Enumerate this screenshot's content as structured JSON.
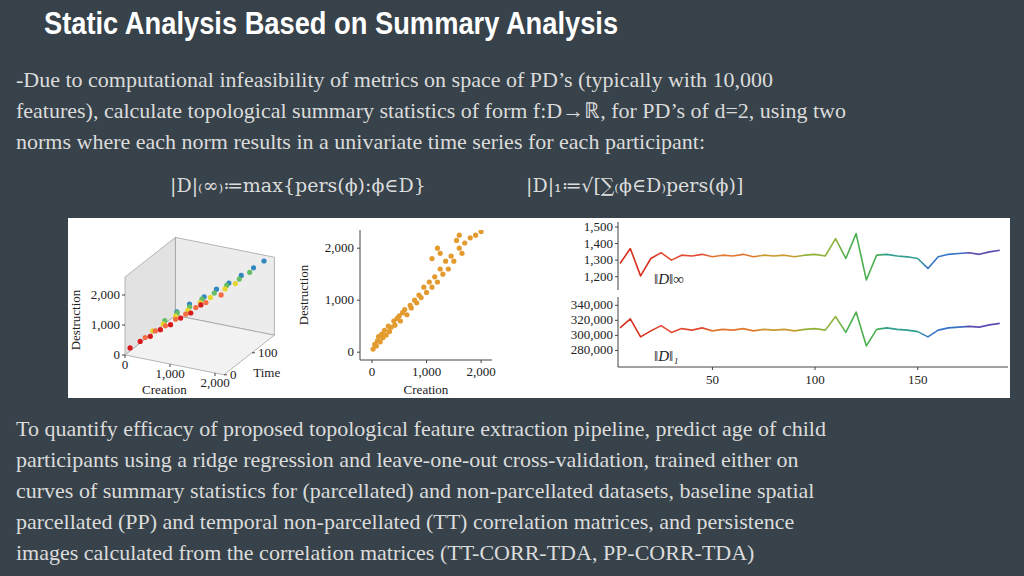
{
  "slide": {
    "title": "Static Analysis Based on Summary Analysis",
    "intro": [
      "-Due to computational infeasibility of metrics on space of PD’s (typically with 10,000",
      "features), calculate topological summary statistics of form f:D→ℝ, for PD’s of d=2, using two",
      "norms where each norm results in a univariate time series for each participant:"
    ],
    "formula_inf": "|D|₍∞₎≔max{pers(ϕ):ϕ∈D}",
    "formula_one": "|D|₁≔√[∑₍ϕ∈D₎pers(ϕ)]",
    "body": [
      "To quantify efficacy of proposed topological feature extraction pipeline, predict age of child",
      "participants using a ridge regression and leave-one-out cross-validation, trained either on",
      "curves of summary statistics for (parcellated) and non-parcellated datasets, baseline spatial",
      "parcellated (PP) and temporal non-parcellated (TT) correlation matrices, and persistence",
      "images calculated from the correlation matrices (TT-CORR-TDA, PP-CORR-TDA)"
    ]
  },
  "chart_data": [
    {
      "type": "scatter3d",
      "x_label": "Creation",
      "y_label": "Destruction",
      "z_label": "Time",
      "xlim": [
        0,
        2200
      ],
      "ylim": [
        0,
        2600
      ],
      "zlim": [
        0,
        180
      ],
      "xticks": [
        0,
        {
          "value": 1000,
          "label": "1,000"
        },
        {
          "value": 2000,
          "label": "2,000"
        }
      ],
      "yticks": [
        0,
        {
          "value": 1000,
          "label": "1,000"
        },
        {
          "value": 2000,
          "label": "2,000"
        }
      ],
      "zticks": [
        0,
        100
      ],
      "series": [
        {
          "color": "#d7191c",
          "x": [
            100,
            300,
            500,
            700,
            900,
            1100,
            1300,
            1500
          ],
          "values": [
            250,
            500,
            700,
            950,
            1150,
            1400,
            1600,
            1900
          ],
          "time": [
            2,
            6,
            10,
            14,
            18,
            22,
            26,
            30
          ]
        },
        {
          "color": "#f46d43",
          "x": [
            200,
            400,
            600,
            800,
            1000,
            1200,
            1400,
            1700
          ],
          "values": [
            350,
            600,
            800,
            1050,
            1250,
            1500,
            1700,
            2000
          ],
          "time": [
            40,
            44,
            48,
            52,
            56,
            60,
            64,
            70
          ]
        },
        {
          "color": "#e6d52c",
          "x": [
            150,
            350,
            600,
            850,
            1100,
            1300,
            1600,
            1800
          ],
          "values": [
            300,
            550,
            850,
            1100,
            1400,
            1600,
            1950,
            2150
          ],
          "time": [
            75,
            80,
            84,
            88,
            92,
            96,
            100,
            105
          ]
        },
        {
          "color": "#66bd63",
          "x": [
            200,
            450,
            700,
            950,
            1200,
            1450,
            1700,
            1900
          ],
          "values": [
            400,
            700,
            950,
            1250,
            1500,
            1800,
            2050,
            2300
          ],
          "time": [
            110,
            114,
            118,
            122,
            126,
            130,
            135,
            140
          ]
        },
        {
          "color": "#3288bd",
          "x": [
            250,
            500,
            800,
            1050,
            1300,
            1550,
            1800,
            2000
          ],
          "values": [
            450,
            750,
            1050,
            1350,
            1600,
            1900,
            2200,
            2450
          ],
          "time": [
            145,
            150,
            154,
            158,
            162,
            166,
            170,
            175
          ]
        }
      ]
    },
    {
      "type": "scatter",
      "x_label": "Creation",
      "y_label": "Destruction",
      "color": "#e39b2f",
      "xlim": [
        -220,
        2200
      ],
      "ylim": [
        -150,
        2350
      ],
      "xticks": [
        0,
        {
          "value": 1000,
          "label": "1,000"
        },
        {
          "value": 2000,
          "label": "2,000"
        }
      ],
      "yticks": [
        0,
        {
          "value": 1000,
          "label": "1,000"
        },
        {
          "value": 2000,
          "label": "2,000"
        }
      ],
      "x": [
        20,
        50,
        80,
        100,
        120,
        150,
        180,
        200,
        230,
        260,
        300,
        320,
        350,
        400,
        420,
        460,
        500,
        520,
        560,
        600,
        640,
        700,
        720,
        780,
        820,
        860,
        900,
        950,
        1000,
        1050,
        1100,
        1150,
        1200,
        1250,
        1300,
        1350,
        1400,
        1450,
        1500,
        1600,
        1650,
        1700,
        1800,
        1900,
        2000,
        1550,
        1250,
        1100,
        1200,
        1600
      ],
      "values": [
        60,
        150,
        120,
        220,
        300,
        200,
        350,
        280,
        420,
        330,
        500,
        400,
        480,
        600,
        520,
        650,
        700,
        600,
        760,
        820,
        720,
        900,
        850,
        1000,
        950,
        1100,
        1050,
        1250,
        1150,
        1350,
        1250,
        1450,
        1350,
        1600,
        1500,
        1750,
        1600,
        1850,
        1750,
        2000,
        1900,
        2100,
        2200,
        2250,
        2320,
        2150,
        1900,
        1800,
        2000,
        2250
      ]
    },
    {
      "type": "line",
      "annotation": "‖D‖∞",
      "tick_labels": "y",
      "xlim": [
        4,
        194
      ],
      "ylim": [
        1120,
        1530
      ],
      "yticks": [
        {
          "value": 1200,
          "label": "1,200"
        },
        {
          "value": 1300,
          "label": "1,300"
        },
        {
          "value": 1400,
          "label": "1,400"
        },
        {
          "value": 1500,
          "label": "1,500"
        }
      ],
      "x": [
        5,
        10,
        15,
        20,
        25,
        30,
        35,
        40,
        45,
        50,
        55,
        60,
        65,
        70,
        75,
        80,
        85,
        90,
        95,
        100,
        105,
        110,
        115,
        120,
        125,
        130,
        135,
        140,
        145,
        150,
        155,
        160,
        165,
        170,
        175,
        180,
        185,
        190
      ],
      "series": [
        {
          "values": [
            1280,
            1370,
            1205,
            1310,
            1345,
            1300,
            1330,
            1325,
            1335,
            1320,
            1330,
            1325,
            1335,
            1320,
            1330,
            1325,
            1330,
            1320,
            1330,
            1335,
            1325,
            1430,
            1310,
            1460,
            1180,
            1330,
            1335,
            1325,
            1320,
            1310,
            1250,
            1320,
            1335,
            1340,
            1345,
            1335,
            1350,
            1360
          ],
          "colors": [
            "#d7301f",
            "#d7301f",
            "#d7301f",
            "#d7301f",
            "#e34a33",
            "#e34a33",
            "#e34a33",
            "#e34a33",
            "#e34a33",
            "#e0782f",
            "#e0782f",
            "#e0782f",
            "#e0782f",
            "#e0782f",
            "#c99a2e",
            "#c99a2e",
            "#c99a2e",
            "#c99a2e",
            "#8fb23a",
            "#8fb23a",
            "#8fb23a",
            "#8fb23a",
            "#4caf50",
            "#4caf50",
            "#4caf50",
            "#4caf50",
            "#2f9e8f",
            "#2f9e8f",
            "#2f9e8f",
            "#2f9e8f",
            "#3575c4",
            "#3575c4",
            "#3575c4",
            "#3575c4",
            "#5a4fb0",
            "#5a4fb0",
            "#5a4fb0",
            "#5a4fb0"
          ]
        }
      ]
    },
    {
      "type": "line",
      "annotation": "‖D‖₁",
      "xlim": [
        4,
        194
      ],
      "ylim": [
        258000,
        351000
      ],
      "xticks": [
        50,
        100,
        150
      ],
      "yticks": [
        {
          "value": 280000,
          "label": "280,000"
        },
        {
          "value": 300000,
          "label": "300,000"
        },
        {
          "value": 320000,
          "label": "320,000"
        },
        {
          "value": 340000,
          "label": "340,000"
        }
      ],
      "x": [
        5,
        10,
        15,
        20,
        25,
        30,
        35,
        40,
        45,
        50,
        55,
        60,
        65,
        70,
        75,
        80,
        85,
        90,
        95,
        100,
        105,
        110,
        115,
        120,
        125,
        130,
        135,
        140,
        145,
        150,
        155,
        160,
        165,
        170,
        175,
        180,
        185,
        190
      ],
      "series": [
        {
          "values": [
            310000,
            322000,
            298000,
            306000,
            313000,
            304000,
            309000,
            307000,
            310000,
            306000,
            308000,
            307000,
            309000,
            306000,
            308000,
            307000,
            308000,
            306000,
            308000,
            309000,
            307000,
            325000,
            304000,
            331000,
            286000,
            308000,
            310000,
            308000,
            307000,
            305000,
            298000,
            307000,
            310000,
            311000,
            312000,
            311000,
            314000,
            316000
          ],
          "colors": [
            "#d7301f",
            "#d7301f",
            "#d7301f",
            "#d7301f",
            "#e34a33",
            "#e34a33",
            "#e34a33",
            "#e34a33",
            "#e34a33",
            "#e0782f",
            "#e0782f",
            "#e0782f",
            "#e0782f",
            "#e0782f",
            "#c99a2e",
            "#c99a2e",
            "#c99a2e",
            "#c99a2e",
            "#8fb23a",
            "#8fb23a",
            "#8fb23a",
            "#8fb23a",
            "#4caf50",
            "#4caf50",
            "#4caf50",
            "#4caf50",
            "#2f9e8f",
            "#2f9e8f",
            "#2f9e8f",
            "#2f9e8f",
            "#3575c4",
            "#3575c4",
            "#3575c4",
            "#3575c4",
            "#5a4fb0",
            "#5a4fb0",
            "#5a4fb0",
            "#5a4fb0"
          ]
        }
      ]
    }
  ]
}
